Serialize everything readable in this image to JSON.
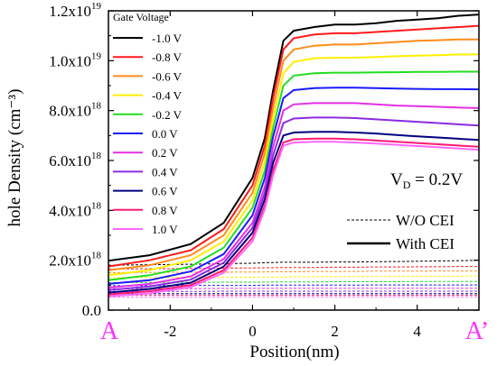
{
  "chart_data": {
    "type": "line",
    "title": "",
    "xlabel": "Position(nm)",
    "ylabel": "hole Density (cm⁻³)",
    "xlim": [
      -3.5,
      5.5
    ],
    "ylim": [
      0,
      12000000000000000000
    ],
    "x_ticks": [
      {
        "value": -2,
        "label": "-2"
      },
      {
        "value": 0,
        "label": "0"
      },
      {
        "value": 2,
        "label": "2"
      },
      {
        "value": 4,
        "label": "4"
      }
    ],
    "y_ticks": [
      {
        "value": 0,
        "mant": "0.0",
        "exp": ""
      },
      {
        "value": 2000000000000000000,
        "mant": "2.0x10",
        "exp": "18"
      },
      {
        "value": 4000000000000000000,
        "mant": "4.0x10",
        "exp": "18"
      },
      {
        "value": 6000000000000000000,
        "mant": "6.0x10",
        "exp": "18"
      },
      {
        "value": 8000000000000000000,
        "mant": "8.0x10",
        "exp": "18"
      },
      {
        "value": 10000000000000000000,
        "mant": "1.0x10",
        "exp": "19"
      },
      {
        "value": 12000000000000000000,
        "mant": "1.2x10",
        "exp": "19"
      }
    ],
    "grid": false,
    "legend_title": "Gate Voltage",
    "legend_position": "top-left",
    "end_labels": {
      "left": "A",
      "right": "A’"
    },
    "annotation": {
      "prefix": "V",
      "sub": "D",
      "suffix": " = 0.2V"
    },
    "style_legend": [
      {
        "label": "W/O CEI",
        "style": "dashed"
      },
      {
        "label": "With CEI",
        "style": "solid"
      }
    ],
    "x": [
      -3.5,
      -2.5,
      -1.5,
      -0.7,
      0.0,
      0.3,
      0.5,
      0.75,
      1.0,
      1.5,
      2.0,
      2.5,
      3.0,
      3.5,
      4.0,
      4.5,
      5.0,
      5.5
    ],
    "series": [
      {
        "name": "-1.0 V",
        "color": "#000000",
        "y_with_cei": [
          1.98,
          2.2,
          2.65,
          3.5,
          5.3,
          6.9,
          8.8,
          10.8,
          11.2,
          11.35,
          11.45,
          11.45,
          11.5,
          11.6,
          11.65,
          11.7,
          11.8,
          11.85
        ],
        "y_wo_cei": [
          1.8,
          1.82,
          1.84,
          1.86,
          1.88,
          1.9,
          1.91,
          1.92,
          1.92,
          1.92,
          1.93,
          1.93,
          1.94,
          1.95,
          1.96,
          1.97,
          1.98,
          2.0
        ]
      },
      {
        "name": "-0.8 V",
        "color": "#ff1a1a",
        "y_with_cei": [
          1.75,
          2.0,
          2.4,
          3.25,
          5.0,
          6.6,
          8.5,
          10.45,
          10.9,
          11.05,
          11.1,
          11.1,
          11.15,
          11.2,
          11.25,
          11.3,
          11.35,
          11.4
        ],
        "y_wo_cei": [
          1.65,
          1.66,
          1.67,
          1.68,
          1.69,
          1.7,
          1.7,
          1.71,
          1.71,
          1.71,
          1.72,
          1.72,
          1.73,
          1.73,
          1.74,
          1.74,
          1.75,
          1.75
        ]
      },
      {
        "name": "-0.6 V",
        "color": "#ff8c1a",
        "y_with_cei": [
          1.6,
          1.8,
          2.2,
          3.0,
          4.7,
          6.3,
          8.1,
          10.0,
          10.45,
          10.6,
          10.65,
          10.65,
          10.7,
          10.75,
          10.8,
          10.82,
          10.85,
          10.85
        ],
        "y_wo_cei": [
          1.5,
          1.51,
          1.52,
          1.52,
          1.53,
          1.53,
          1.54,
          1.54,
          1.54,
          1.55,
          1.55,
          1.55,
          1.56,
          1.56,
          1.56,
          1.57,
          1.57,
          1.57
        ]
      },
      {
        "name": "-0.4 V",
        "color": "#ffee00",
        "y_with_cei": [
          1.4,
          1.6,
          2.0,
          2.75,
          4.4,
          5.95,
          7.7,
          9.5,
          9.95,
          10.1,
          10.12,
          10.12,
          10.15,
          10.18,
          10.2,
          10.22,
          10.25,
          10.25
        ],
        "y_wo_cei": [
          1.3,
          1.31,
          1.31,
          1.32,
          1.32,
          1.33,
          1.33,
          1.33,
          1.34,
          1.34,
          1.34,
          1.35,
          1.35,
          1.35,
          1.36,
          1.36,
          1.36,
          1.37
        ]
      },
      {
        "name": "-0.2 V",
        "color": "#22dd22",
        "y_with_cei": [
          1.2,
          1.4,
          1.75,
          2.5,
          4.1,
          5.6,
          7.3,
          9.0,
          9.4,
          9.5,
          9.52,
          9.52,
          9.53,
          9.54,
          9.55,
          9.55,
          9.56,
          9.56
        ],
        "y_wo_cei": [
          1.1,
          1.11,
          1.11,
          1.12,
          1.12,
          1.12,
          1.13,
          1.13,
          1.13,
          1.13,
          1.14,
          1.14,
          1.14,
          1.14,
          1.15,
          1.15,
          1.15,
          1.15
        ]
      },
      {
        "name": "0.0 V",
        "color": "#1a1aff",
        "y_with_cei": [
          1.05,
          1.2,
          1.55,
          2.25,
          3.8,
          5.3,
          6.95,
          8.5,
          8.82,
          8.9,
          8.92,
          8.92,
          8.9,
          8.88,
          8.87,
          8.86,
          8.86,
          8.85
        ],
        "y_wo_cei": [
          0.98,
          0.98,
          0.99,
          0.99,
          0.99,
          1.0,
          1.0,
          1.0,
          1.0,
          1.0,
          1.0,
          1.0,
          1.01,
          1.01,
          1.01,
          1.01,
          1.01,
          1.01
        ]
      },
      {
        "name": "0.2 V",
        "color": "#e62ee6",
        "y_with_cei": [
          0.9,
          1.05,
          1.35,
          2.05,
          3.5,
          4.95,
          6.55,
          8.0,
          8.25,
          8.3,
          8.3,
          8.3,
          8.25,
          8.2,
          8.18,
          8.15,
          8.12,
          8.1
        ],
        "y_wo_cei": [
          0.86,
          0.86,
          0.86,
          0.87,
          0.87,
          0.87,
          0.87,
          0.88,
          0.88,
          0.88,
          0.88,
          0.88,
          0.88,
          0.88,
          0.88,
          0.88,
          0.88,
          0.88
        ]
      },
      {
        "name": "0.4 V",
        "color": "#8a2be2",
        "y_with_cei": [
          0.8,
          0.95,
          1.22,
          1.9,
          3.3,
          4.7,
          6.2,
          7.5,
          7.68,
          7.72,
          7.72,
          7.7,
          7.65,
          7.6,
          7.55,
          7.5,
          7.45,
          7.4
        ],
        "y_wo_cei": [
          0.75,
          0.75,
          0.75,
          0.76,
          0.76,
          0.76,
          0.76,
          0.76,
          0.76,
          0.76,
          0.76,
          0.76,
          0.76,
          0.76,
          0.76,
          0.76,
          0.76,
          0.76
        ]
      },
      {
        "name": "0.6 V",
        "color": "#000080",
        "y_with_cei": [
          0.7,
          0.85,
          1.1,
          1.75,
          3.1,
          4.45,
          5.9,
          7.0,
          7.12,
          7.15,
          7.15,
          7.12,
          7.08,
          7.02,
          6.97,
          6.92,
          6.87,
          6.82
        ],
        "y_wo_cei": [
          0.66,
          0.66,
          0.66,
          0.66,
          0.66,
          0.66,
          0.66,
          0.66,
          0.66,
          0.66,
          0.66,
          0.66,
          0.66,
          0.66,
          0.66,
          0.66,
          0.66,
          0.66
        ]
      },
      {
        "name": "0.8 V",
        "color": "#ff1a75",
        "y_with_cei": [
          0.63,
          0.76,
          1.0,
          1.6,
          2.9,
          4.2,
          5.6,
          6.72,
          6.85,
          6.88,
          6.88,
          6.85,
          6.8,
          6.75,
          6.7,
          6.65,
          6.6,
          6.55
        ],
        "y_wo_cei": [
          0.6,
          0.6,
          0.6,
          0.6,
          0.6,
          0.6,
          0.6,
          0.6,
          0.6,
          0.6,
          0.6,
          0.6,
          0.6,
          0.6,
          0.6,
          0.6,
          0.6,
          0.6
        ]
      },
      {
        "name": "1.0 V",
        "color": "#ff66ff",
        "y_with_cei": [
          0.55,
          0.68,
          0.92,
          1.5,
          2.75,
          4.05,
          5.4,
          6.6,
          6.72,
          6.75,
          6.75,
          6.72,
          6.68,
          6.63,
          6.58,
          6.53,
          6.48,
          6.43
        ],
        "y_wo_cei": [
          0.52,
          0.52,
          0.52,
          0.53,
          0.53,
          0.53,
          0.53,
          0.53,
          0.53,
          0.53,
          0.53,
          0.53,
          0.53,
          0.53,
          0.53,
          0.53,
          0.53,
          0.53
        ]
      }
    ],
    "y_unit_note": "y_with_cei and y_wo_cei values are in units of 1e18 cm^-3"
  }
}
